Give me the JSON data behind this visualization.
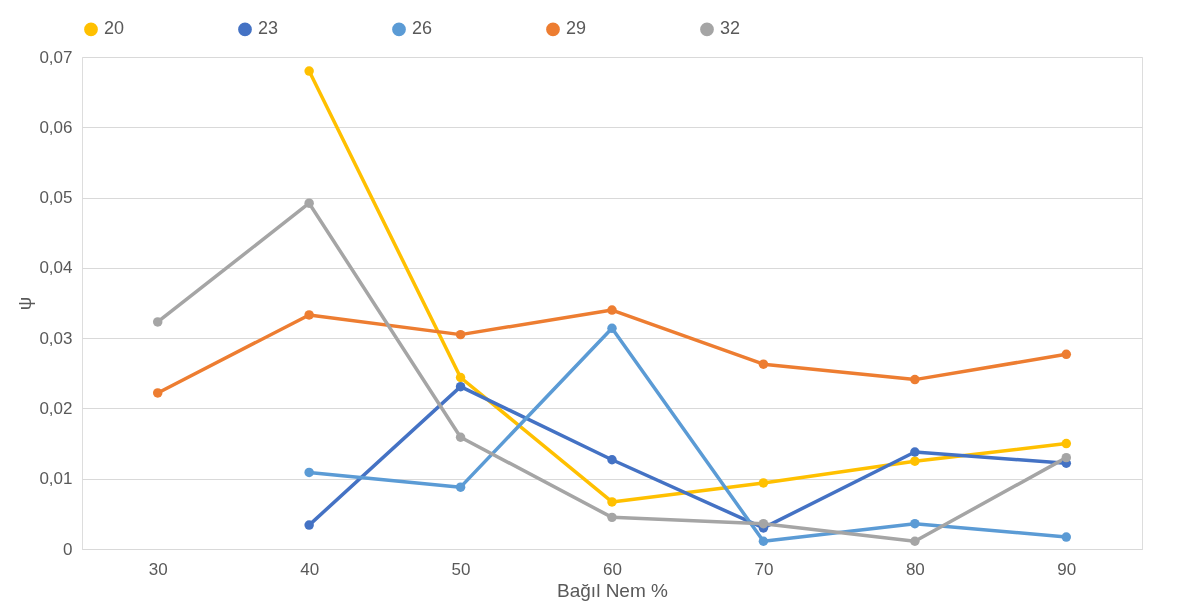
{
  "chart_data": {
    "type": "line",
    "xlabel": "Bağıl Nem %",
    "ylabel": "ψ",
    "categories": [
      "30",
      "40",
      "50",
      "60",
      "70",
      "80",
      "90"
    ],
    "series": [
      {
        "name": "20",
        "color": "#ffc000",
        "values": [
          null,
          0.068,
          0.0244,
          0.0067,
          0.0094,
          0.0125,
          0.015
        ]
      },
      {
        "name": "23",
        "color": "#4472c4",
        "values": [
          null,
          0.0034,
          0.0231,
          0.0127,
          0.003,
          0.0138,
          0.0122
        ]
      },
      {
        "name": "26",
        "color": "#5b9bd5",
        "values": [
          null,
          0.0109,
          0.0088,
          0.0314,
          0.0011,
          0.0036,
          0.0017
        ]
      },
      {
        "name": "29",
        "color": "#ed7d31",
        "values": [
          0.0222,
          0.0333,
          0.0305,
          0.034,
          0.0263,
          0.0241,
          0.0277
        ]
      },
      {
        "name": "32",
        "color": "#a5a5a5",
        "values": [
          0.0323,
          0.0492,
          0.0159,
          0.0045,
          0.0036,
          0.0011,
          0.013
        ]
      }
    ],
    "ylim": [
      0,
      0.07
    ],
    "yticks": [
      0,
      {
        "value": 0.01,
        "label": "0,01"
      },
      {
        "value": 0.02,
        "label": "0,02"
      },
      {
        "value": 0.03,
        "label": "0,03"
      },
      {
        "value": 0.04,
        "label": "0,04"
      },
      {
        "value": 0.05,
        "label": "0,05"
      },
      {
        "value": 0.06,
        "label": "0,06"
      },
      {
        "value": 0.07,
        "label": "0,07"
      }
    ],
    "grid": "y",
    "legend": "top",
    "marker": "circle",
    "line_style": "solid"
  }
}
